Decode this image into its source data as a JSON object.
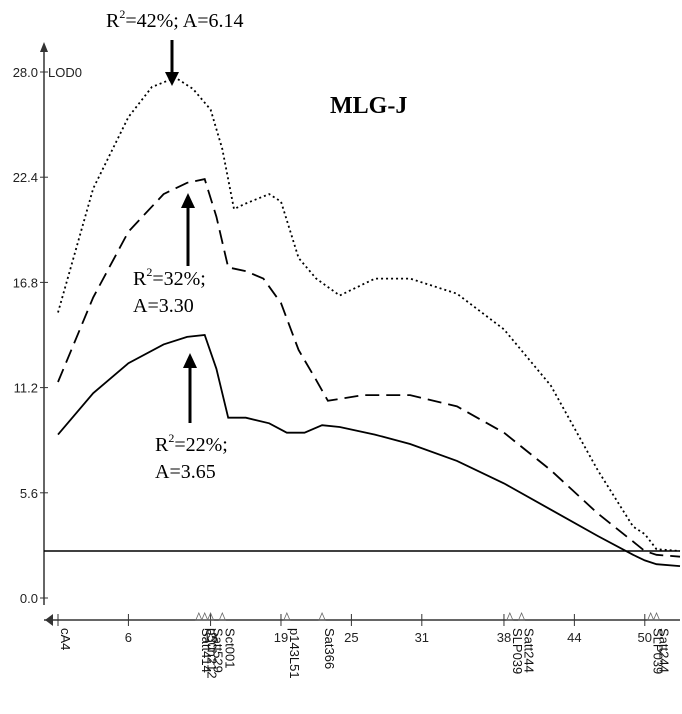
{
  "chart_data": {
    "type": "line",
    "title": "MLG-J",
    "ylabel": "LOD0",
    "xlim": [
      0,
      53
    ],
    "ylim": [
      0,
      28
    ],
    "y_ticks": [
      "0.0",
      "5.6",
      "11.2",
      "16.8",
      "22.4",
      "28.0"
    ],
    "x_ticks": [
      "0",
      "6",
      "13",
      "19",
      "25",
      "31",
      "38",
      "44",
      "50"
    ],
    "threshold": 2.5,
    "series": [
      {
        "style": "dotted",
        "x": [
          0,
          3,
          6,
          8,
          10,
          11.5,
          13,
          14,
          15,
          16,
          18,
          19,
          20.5,
          22,
          24,
          27,
          30,
          34,
          38,
          42,
          46,
          49,
          50,
          51,
          53
        ],
        "y": [
          15.2,
          21.8,
          25.6,
          27.2,
          27.7,
          27.1,
          26.0,
          23.9,
          20.7,
          21.0,
          21.5,
          21.1,
          18.1,
          17.0,
          16.1,
          17.0,
          17.0,
          16.2,
          14.3,
          11.3,
          6.8,
          3.8,
          3.4,
          2.6,
          2.5
        ]
      },
      {
        "style": "dashed",
        "x": [
          0,
          3,
          6,
          9,
          11,
          12.5,
          13.5,
          14.5,
          16,
          17.5,
          19,
          20.5,
          22,
          23,
          26,
          30,
          34,
          38,
          42,
          46,
          49,
          50,
          51,
          53
        ],
        "y": [
          11.5,
          16.0,
          19.5,
          21.5,
          22.1,
          22.3,
          20.3,
          17.6,
          17.4,
          17.0,
          15.7,
          13.2,
          11.6,
          10.5,
          10.8,
          10.8,
          10.2,
          8.8,
          6.8,
          4.5,
          3.0,
          2.5,
          2.3,
          2.2
        ]
      },
      {
        "style": "solid",
        "x": [
          0,
          3,
          6,
          9,
          11,
          12.5,
          13.5,
          14.5,
          16,
          18,
          19.5,
          21,
          22.5,
          24,
          27,
          30,
          34,
          38,
          42,
          46,
          49,
          50,
          51,
          53
        ],
        "y": [
          8.7,
          10.9,
          12.5,
          13.5,
          13.9,
          14.0,
          12.2,
          9.6,
          9.6,
          9.3,
          8.8,
          8.8,
          9.2,
          9.1,
          8.7,
          8.2,
          7.3,
          6.1,
          4.7,
          3.3,
          2.3,
          2.0,
          1.8,
          1.7
        ]
      }
    ],
    "markers": [
      {
        "x": 0,
        "label": "cA4"
      },
      {
        "x": 12,
        "label": "Satt414"
      },
      {
        "x": 12.5,
        "label": "p50h212"
      },
      {
        "x": 13,
        "label": "Satt529"
      },
      {
        "x": 14,
        "label": "Sct001"
      },
      {
        "x": 19.5,
        "label": "p143L51"
      },
      {
        "x": 22.5,
        "label": "Sat366"
      },
      {
        "x": 38.5,
        "label": "SLP039"
      },
      {
        "x": 39.5,
        "label": "Satt244"
      },
      {
        "x": 50.5,
        "label": "SLP039"
      },
      {
        "x": 51,
        "label": "Satt244"
      }
    ],
    "annotations": [
      {
        "r2": "42%",
        "a": "A=6.14",
        "line1_sep": "; "
      },
      {
        "r2": "32%;",
        "a": "A=3.30"
      },
      {
        "r2": "22%;",
        "a": "A=3.65"
      }
    ]
  }
}
